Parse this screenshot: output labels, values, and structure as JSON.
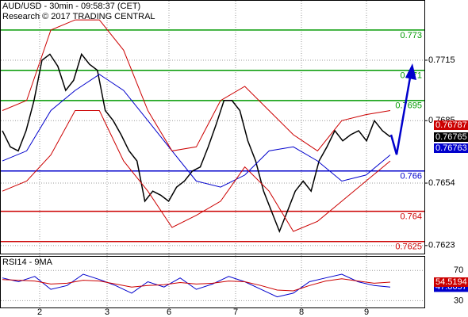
{
  "chart_data": {
    "type": "line",
    "title": "AUD/USD - 30min - 09:58:37 (CET)",
    "subtitle": "Research © 2017 TRADING CENTRAL",
    "ylim": [
      0.7619,
      0.77445
    ],
    "yticks": [
      0.7715,
      0.7685,
      0.7654,
      0.7623
    ],
    "grid": true,
    "x_labels": [
      "2",
      "3",
      "6",
      "7",
      "8",
      "9"
    ],
    "series": [
      {
        "name": "price",
        "color": "#000000",
        "values": [
          0.768,
          0.7672,
          0.767,
          0.768,
          0.7695,
          0.7715,
          0.7718,
          0.7712,
          0.77,
          0.7705,
          0.7718,
          0.7713,
          0.771,
          0.769,
          0.7685,
          0.7678,
          0.767,
          0.7665,
          0.7645,
          0.765,
          0.7648,
          0.7645,
          0.7652,
          0.7655,
          0.766,
          0.7662,
          0.7672,
          0.7683,
          0.7695,
          0.7695,
          0.769,
          0.7675,
          0.7665,
          0.765,
          0.764,
          0.763,
          0.764,
          0.765,
          0.7655,
          0.765,
          0.7665,
          0.7672,
          0.768,
          0.7675,
          0.7678,
          0.768,
          0.7675,
          0.7685,
          0.768,
          0.7677
        ]
      },
      {
        "name": "ma",
        "color": "#0000cc",
        "values": [
          0.7665,
          0.767,
          0.769,
          0.77,
          0.7708,
          0.77,
          0.7685,
          0.767,
          0.7655,
          0.7652,
          0.7658,
          0.767,
          0.7672,
          0.7665,
          0.7655,
          0.7658,
          0.7668
        ]
      },
      {
        "name": "upper",
        "color": "#cc0000",
        "values": [
          0.769,
          0.7695,
          0.773,
          0.7735,
          0.7735,
          0.772,
          0.769,
          0.767,
          0.7672,
          0.7695,
          0.7702,
          0.769,
          0.7678,
          0.767,
          0.7685,
          0.7688,
          0.769
        ]
      },
      {
        "name": "lower",
        "color": "#cc0000",
        "values": [
          0.765,
          0.7655,
          0.7668,
          0.769,
          0.769,
          0.7665,
          0.765,
          0.7632,
          0.7638,
          0.7645,
          0.7662,
          0.765,
          0.763,
          0.7635,
          0.7645,
          0.7655,
          0.7665
        ]
      }
    ],
    "levels": [
      {
        "value": 0.773,
        "color": "#009900"
      },
      {
        "value": 0.771,
        "color": "#009900"
      },
      {
        "value": 0.7695,
        "color": "#009900"
      },
      {
        "value": 0.766,
        "color": "#0000cc"
      },
      {
        "value": 0.764,
        "color": "#cc0000"
      },
      {
        "value": 0.7625,
        "color": "#cc0000"
      }
    ],
    "price_tags": [
      {
        "value": 0.76787,
        "color": "#cc0000"
      },
      {
        "value": 0.76765,
        "color": "#000000"
      },
      {
        "value": 0.76763,
        "color": "#0000cc"
      }
    ],
    "rsi": {
      "title": "RSI14 - 9MA",
      "ylim": [
        21,
        88
      ],
      "yticks": [
        70,
        30
      ],
      "series": [
        {
          "name": "rsi",
          "color": "#0000cc",
          "values": [
            60,
            55,
            62,
            45,
            50,
            65,
            58,
            50,
            40,
            55,
            48,
            60,
            45,
            52,
            62,
            55,
            45,
            35,
            40,
            55,
            60,
            65,
            55,
            50,
            47.8657
          ]
        },
        {
          "name": "rsi-ma",
          "color": "#cc0000",
          "values": [
            58,
            57,
            56,
            52,
            53,
            57,
            56,
            52,
            48,
            50,
            51,
            54,
            52,
            53,
            56,
            55,
            50,
            44,
            43,
            50,
            56,
            59,
            56,
            53,
            54.5194
          ]
        }
      ]
    }
  }
}
